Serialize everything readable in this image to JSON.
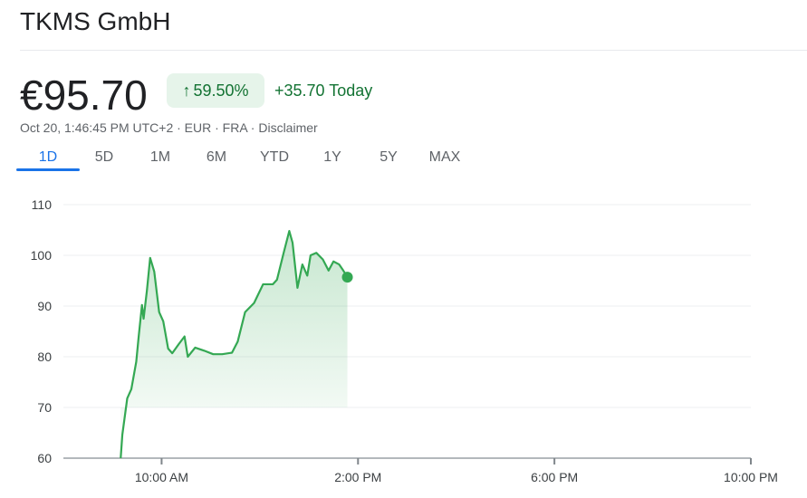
{
  "title": "TKMS GmbH",
  "price": "€95.70",
  "change_pct": "59.50%",
  "change_icon": "arrow-up-icon",
  "change_today": "+35.70 Today",
  "meta": "Oct 20, 1:46:45 PM UTC+2 · EUR · FRA · Disclaimer",
  "tabs": [
    "1D",
    "5D",
    "1M",
    "6M",
    "YTD",
    "1Y",
    "5Y",
    "MAX"
  ],
  "active_tab": "1D",
  "colors": {
    "line": "#34a853",
    "up": "#137333",
    "accent": "#1a73e8"
  },
  "chart_data": {
    "type": "area",
    "title": "",
    "xlabel": "",
    "ylabel": "",
    "ylim": [
      60,
      110
    ],
    "yticks": [
      "110",
      "100",
      "90",
      "80",
      "70",
      "60"
    ],
    "xlim": [
      "08:00",
      "22:00"
    ],
    "xticks": [
      {
        "t": "10:00",
        "label": "10:00 AM"
      },
      {
        "t": "14:00",
        "label": "2:00 PM"
      },
      {
        "t": "18:00",
        "label": "6:00 PM"
      },
      {
        "t": "22:00",
        "label": "10:00 PM"
      }
    ],
    "grid": true,
    "series": [
      {
        "x": [
          "09:10",
          "09:12",
          "09:18",
          "09:23",
          "09:29",
          "09:32",
          "09:36",
          "09:38",
          "09:42",
          "09:46",
          "09:51",
          "09:57",
          "10:02",
          "10:08",
          "10:13",
          "10:21",
          "10:28",
          "10:32",
          "10:41",
          "10:52",
          "11:03",
          "11:14",
          "11:26",
          "11:33",
          "11:42",
          "11:53",
          "12:04",
          "12:16",
          "12:21",
          "12:29",
          "12:36",
          "12:40",
          "12:46",
          "12:52",
          "12:58",
          "13:02",
          "13:09",
          "13:17",
          "13:24",
          "13:30",
          "13:37",
          "13:42",
          "13:47"
        ],
        "y": [
          60,
          64.6,
          71.8,
          73.6,
          79,
          84,
          90.2,
          87.5,
          93,
          99.5,
          96.8,
          88.8,
          87,
          81.6,
          80.7,
          82.5,
          84,
          80,
          81.8,
          81.2,
          80.5,
          80.5,
          80.8,
          83,
          88.8,
          90.6,
          94.3,
          94.3,
          95.2,
          100.4,
          104.8,
          102.5,
          93.6,
          98.2,
          96,
          100,
          100.5,
          99.2,
          97,
          98.8,
          98.2,
          97,
          95.7
        ]
      }
    ]
  }
}
